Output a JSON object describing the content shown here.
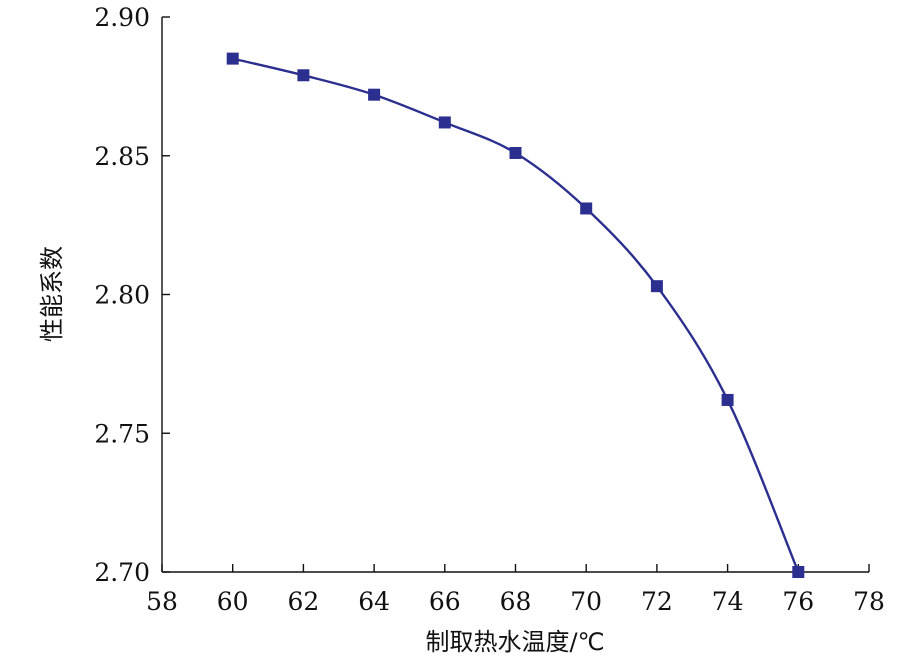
{
  "chart_data": {
    "type": "line",
    "title": "",
    "xlabel": "制取热水温度/℃",
    "ylabel": "性能系数",
    "xlim": [
      58,
      78
    ],
    "ylim": [
      2.7,
      2.9
    ],
    "xticks": [
      "58",
      "60",
      "62",
      "64",
      "66",
      "68",
      "70",
      "72",
      "74",
      "76",
      "78"
    ],
    "yticks": [
      "2.70",
      "2.75",
      "2.80",
      "2.85",
      "2.90"
    ],
    "grid": false,
    "legend": "none",
    "series": [
      {
        "marker": "square",
        "color": "#2b2f8f",
        "points": [
          {
            "x": 60,
            "y": 2.885
          },
          {
            "x": 62,
            "y": 2.879
          },
          {
            "x": 64,
            "y": 2.872
          },
          {
            "x": 66,
            "y": 2.862
          },
          {
            "x": 68,
            "y": 2.851
          },
          {
            "x": 70,
            "y": 2.831
          },
          {
            "x": 72,
            "y": 2.803
          },
          {
            "x": 74,
            "y": 2.762
          },
          {
            "x": 76,
            "y": 2.7
          }
        ]
      }
    ]
  }
}
